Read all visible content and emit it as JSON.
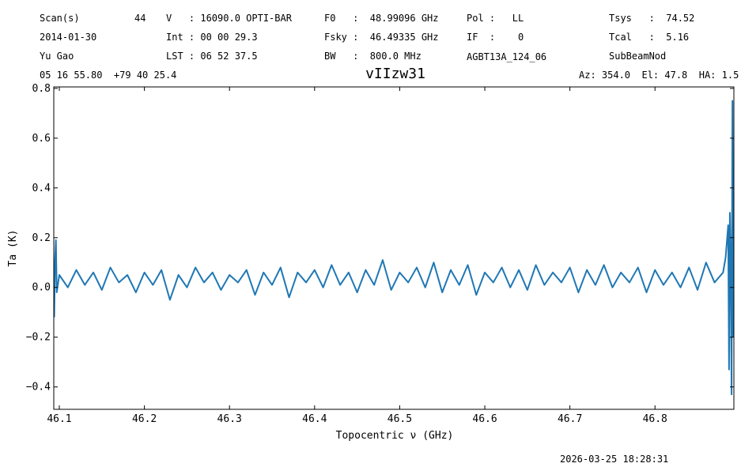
{
  "chart_data": {
    "type": "line",
    "title": "vIIzw31",
    "header": {
      "scan_label": "Scan(s)",
      "scan": "44",
      "date": "2014-01-30",
      "observer": "Yu Gao",
      "velocity": "V   : 16090.0 OPTI-BAR",
      "int": "Int : 00 00 29.3",
      "lst": "LST : 06 52 37.5",
      "f0": "F0   :  48.99096 GHz",
      "fsky": "Fsky :  46.49335 GHz",
      "bw": "BW   :  800.0 MHz",
      "pol": "Pol :   LL",
      "if": "IF  :    0",
      "project": "AGBT13A_124_06",
      "tsys": "Tsys   :  74.52",
      "tcal": "Tcal   :  5.16",
      "procedure": "SubBeamNod",
      "coords": "05 16 55.80  +79 40 25.4",
      "azel": "Az: 354.0  El: 47.8  HA: 1.5"
    },
    "xlabel": "Topocentric ν (GHz)",
    "ylabel": "Ta (K)",
    "timestamp": "2026-03-25 18:28:31",
    "xlim": [
      46.0935,
      46.8927
    ],
    "ylim": [
      -0.49,
      0.806
    ],
    "xticks": [
      46.1,
      46.2,
      46.3,
      46.4,
      46.5,
      46.6,
      46.7,
      46.8
    ],
    "yticks": [
      {
        "value": -0.4,
        "label": "−0.4"
      },
      {
        "value": -0.2,
        "label": "−0.2"
      },
      {
        "value": 0,
        "label": "0.0"
      },
      0.2,
      0.4,
      0.6,
      0.8
    ],
    "series": [
      {
        "name": "vIIzw31",
        "color": "#1f77b4",
        "x": [
          46.094,
          46.095,
          46.096,
          46.097,
          46.1,
          46.11,
          46.12,
          46.13,
          46.14,
          46.15,
          46.16,
          46.17,
          46.18,
          46.19,
          46.2,
          46.21,
          46.22,
          46.23,
          46.24,
          46.25,
          46.26,
          46.27,
          46.28,
          46.29,
          46.3,
          46.31,
          46.32,
          46.33,
          46.34,
          46.35,
          46.36,
          46.37,
          46.38,
          46.39,
          46.4,
          46.41,
          46.42,
          46.43,
          46.44,
          46.45,
          46.46,
          46.47,
          46.48,
          46.49,
          46.5,
          46.51,
          46.52,
          46.53,
          46.54,
          46.55,
          46.56,
          46.57,
          46.58,
          46.59,
          46.6,
          46.61,
          46.62,
          46.63,
          46.64,
          46.65,
          46.66,
          46.67,
          46.68,
          46.69,
          46.7,
          46.71,
          46.72,
          46.73,
          46.74,
          46.75,
          46.76,
          46.77,
          46.78,
          46.79,
          46.8,
          46.81,
          46.82,
          46.83,
          46.84,
          46.85,
          46.86,
          46.87,
          46.88,
          46.883,
          46.886,
          46.887,
          46.888,
          46.889,
          46.89,
          46.891,
          46.892
        ],
        "values": [
          -0.12,
          0.11,
          0.19,
          -0.02,
          0.05,
          0.0,
          0.07,
          0.01,
          0.06,
          -0.01,
          0.08,
          0.02,
          0.05,
          -0.02,
          0.06,
          0.01,
          0.07,
          -0.05,
          0.05,
          0.0,
          0.08,
          0.02,
          0.06,
          -0.01,
          0.05,
          0.02,
          0.07,
          -0.03,
          0.06,
          0.01,
          0.08,
          -0.04,
          0.06,
          0.02,
          0.07,
          0.0,
          0.09,
          0.01,
          0.06,
          -0.02,
          0.07,
          0.01,
          0.11,
          -0.01,
          0.06,
          0.02,
          0.08,
          0.0,
          0.1,
          -0.02,
          0.07,
          0.01,
          0.09,
          -0.03,
          0.06,
          0.02,
          0.08,
          0.0,
          0.07,
          -0.01,
          0.09,
          0.01,
          0.06,
          0.02,
          0.08,
          -0.02,
          0.07,
          0.01,
          0.09,
          0.0,
          0.06,
          0.02,
          0.08,
          -0.02,
          0.07,
          0.01,
          0.06,
          0.0,
          0.08,
          -0.01,
          0.1,
          0.02,
          0.06,
          0.12,
          0.25,
          -0.33,
          0.3,
          0.1,
          -0.43,
          0.75,
          -0.2
        ]
      }
    ]
  }
}
